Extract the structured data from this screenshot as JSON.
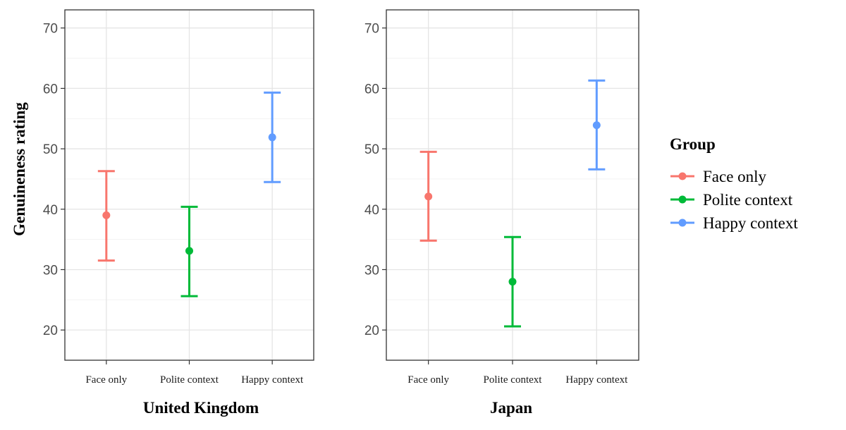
{
  "chart_data": [
    {
      "type": "scatter",
      "panel": "United Kingdom",
      "xlabel": "United Kingdom",
      "ylabel": "Genuineness rating",
      "ylim": [
        15,
        73
      ],
      "yticks": [
        20,
        30,
        40,
        50,
        60,
        70
      ],
      "grid": true,
      "categories": [
        "Face only",
        "Polite context",
        "Happy context"
      ],
      "series": [
        {
          "name": "Face only",
          "color": "#F8766D",
          "x": "Face only",
          "y": 39.0,
          "ymin": 31.5,
          "ymax": 46.3
        },
        {
          "name": "Polite context",
          "color": "#00BA38",
          "x": "Polite context",
          "y": 33.1,
          "ymin": 25.6,
          "ymax": 40.4
        },
        {
          "name": "Happy context",
          "color": "#619CFF",
          "x": "Happy context",
          "y": 51.9,
          "ymin": 44.5,
          "ymax": 59.3
        }
      ]
    },
    {
      "type": "scatter",
      "panel": "Japan",
      "xlabel": "Japan",
      "ylabel": "",
      "ylim": [
        15,
        73
      ],
      "yticks": [
        20,
        30,
        40,
        50,
        60,
        70
      ],
      "grid": true,
      "categories": [
        "Face only",
        "Polite context",
        "Happy context"
      ],
      "series": [
        {
          "name": "Face only",
          "color": "#F8766D",
          "x": "Face only",
          "y": 42.1,
          "ymin": 34.8,
          "ymax": 49.5
        },
        {
          "name": "Polite context",
          "color": "#00BA38",
          "x": "Polite context",
          "y": 28.0,
          "ymin": 20.6,
          "ymax": 35.4
        },
        {
          "name": "Happy context",
          "color": "#619CFF",
          "x": "Happy context",
          "y": 53.9,
          "ymin": 46.6,
          "ymax": 61.3
        }
      ]
    }
  ],
  "legend": {
    "title": "Group",
    "placement": "right",
    "items": [
      {
        "label": "Face only",
        "color": "#F8766D"
      },
      {
        "label": "Polite context",
        "color": "#00BA38"
      },
      {
        "label": "Happy context",
        "color": "#619CFF"
      }
    ]
  }
}
